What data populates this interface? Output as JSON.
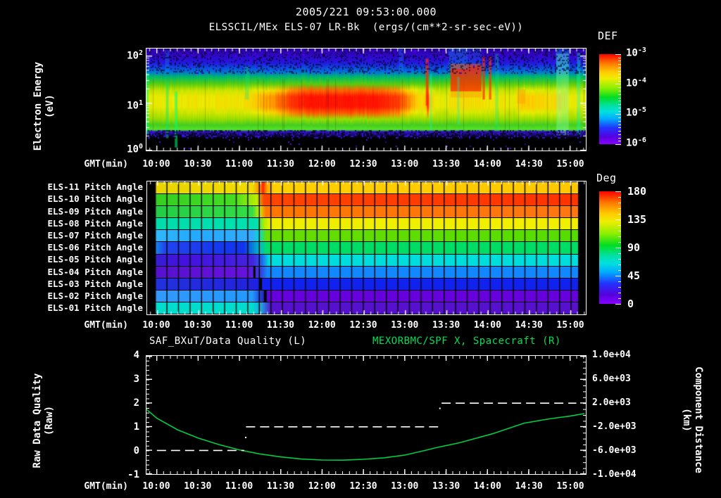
{
  "header": {
    "date_title": "2005/221 09:53:00.000",
    "instrument_title": "ELSSCIL/MEx ELS-07 LR-Bk  (ergs/(cm**2-sr-sec-eV))"
  },
  "colors": {
    "background": "#000000",
    "text": "#ffffff",
    "green_accent": "#00e055",
    "curve_green": "#00cc44"
  },
  "time_axis": {
    "label": "GMT(min)",
    "ticks": [
      "10:00",
      "10:30",
      "11:00",
      "11:30",
      "12:00",
      "12:30",
      "13:00",
      "13:30",
      "14:00",
      "14:30",
      "15:00"
    ]
  },
  "top_panel": {
    "ylabel_line1": "Electron Energy",
    "ylabel_line2": "(eV)",
    "yticks": [
      {
        "b": "10",
        "e": "2"
      },
      {
        "b": "10",
        "e": "1"
      },
      {
        "b": "10",
        "e": "0"
      }
    ],
    "colorbar": {
      "title": "DEF",
      "ticks": [
        {
          "b": "10",
          "e": "-3"
        },
        {
          "b": "10",
          "e": "-4"
        },
        {
          "b": "10",
          "e": "-5"
        },
        {
          "b": "10",
          "e": "-6"
        }
      ]
    }
  },
  "middle_panel": {
    "colorbar": {
      "title": "Deg",
      "ticks": [
        "180",
        "135",
        "90",
        "45",
        "0"
      ]
    },
    "rows": [
      {
        "label": "ELS-11 Pitch Angle",
        "stops": [
          [
            0,
            "#e8d400"
          ],
          [
            24,
            "#f0dc00"
          ],
          [
            25.8,
            "#ff8800"
          ],
          [
            26.4,
            "#ff2200"
          ],
          [
            27.4,
            "#ffaa00"
          ],
          [
            29,
            "#ffd000"
          ],
          [
            100,
            "#ffc800"
          ]
        ]
      },
      {
        "label": "ELS-10 Pitch Angle",
        "stops": [
          [
            0,
            "#33cc22"
          ],
          [
            20,
            "#44dd22"
          ],
          [
            25,
            "#bbee00"
          ],
          [
            26.6,
            "#ff4400"
          ],
          [
            100,
            "#ff3300"
          ]
        ]
      },
      {
        "label": "ELS-09 Pitch Angle",
        "stops": [
          [
            0,
            "#22cc44"
          ],
          [
            24,
            "#33dd44"
          ],
          [
            25.6,
            "#ccee00"
          ],
          [
            27,
            "#ff7700"
          ],
          [
            100,
            "#ff7711"
          ]
        ]
      },
      {
        "label": "ELS-08 Pitch Angle",
        "stops": [
          [
            0,
            "#00ddaa"
          ],
          [
            25,
            "#00e0b0"
          ],
          [
            26.6,
            "#aaee00"
          ],
          [
            28,
            "#eeee00"
          ],
          [
            100,
            "#f0f000"
          ]
        ]
      },
      {
        "label": "ELS-07 Pitch Angle",
        "stops": [
          [
            0,
            "#33bbff"
          ],
          [
            10,
            "#22aaff"
          ],
          [
            24,
            "#33aaff"
          ],
          [
            25.6,
            "#00ddcc"
          ],
          [
            27.2,
            "#66dd00"
          ],
          [
            100,
            "#55dd00"
          ]
        ]
      },
      {
        "label": "ELS-06 Pitch Angle",
        "stops": [
          [
            0,
            "#00c8e8"
          ],
          [
            4,
            "#2244ee"
          ],
          [
            22,
            "#1133ee"
          ],
          [
            25.6,
            "#00bbcc"
          ],
          [
            27.4,
            "#00dd66"
          ],
          [
            100,
            "#00dd66"
          ]
        ]
      },
      {
        "label": "ELS-05 Pitch Angle",
        "stops": [
          [
            0,
            "#3322cc"
          ],
          [
            8,
            "#4411dd"
          ],
          [
            24,
            "#4422dd"
          ],
          [
            26.2,
            "#2266ee"
          ],
          [
            27.8,
            "#00dddd"
          ],
          [
            100,
            "#00dddd"
          ]
        ]
      },
      {
        "label": "ELS-04 Pitch Angle",
        "stops": [
          [
            0,
            "#5511cc"
          ],
          [
            23,
            "#6611dd"
          ],
          [
            26,
            "#3344dd"
          ],
          [
            27.4,
            "#1188ff"
          ],
          [
            100,
            "#1188ff"
          ]
        ]
      },
      {
        "label": "ELS-03 Pitch Angle",
        "stops": [
          [
            0,
            "#2233dd"
          ],
          [
            24,
            "#2222dd"
          ],
          [
            26.6,
            "#1122ee"
          ],
          [
            100,
            "#1122ee"
          ]
        ]
      },
      {
        "label": "ELS-02 Pitch Angle",
        "stops": [
          [
            0,
            "#3399ff"
          ],
          [
            24,
            "#2299ff"
          ],
          [
            26.2,
            "#2233cc"
          ],
          [
            27.8,
            "#6600dd"
          ],
          [
            100,
            "#6600dd"
          ]
        ]
      },
      {
        "label": "ELS-01 Pitch Angle",
        "stops": [
          [
            0,
            "#00ddcc"
          ],
          [
            24,
            "#00ddcc"
          ],
          [
            26.2,
            "#2299dd"
          ],
          [
            28.2,
            "#5511cc"
          ],
          [
            100,
            "#5511cc"
          ]
        ]
      }
    ],
    "marks": [
      {
        "row": 7,
        "pct": 24.2,
        "w": 3
      },
      {
        "row": 8,
        "pct": 25.7,
        "w": 3
      },
      {
        "row": 9,
        "pct": 26.6,
        "w": 4
      }
    ]
  },
  "bottom_panel": {
    "title_left": "SAF_BXuT/Data Quality (L)",
    "title_right": "MEXORBMC/SPF X, Spacecraft (R)",
    "ylabel_left_1": "Raw Data Quality",
    "ylabel_left_2": "(Raw)",
    "yticks_left": [
      "4",
      "3",
      "2",
      "1",
      "0",
      "-1"
    ],
    "ylabel_right_1": "Component Distance",
    "ylabel_right_2": "(km)",
    "yticks_right": [
      "1.0e+04",
      "6.0e+03",
      "2.0e+03",
      "-2.0e+03",
      "-6.0e+03",
      "-1.0e+04"
    ]
  },
  "chart_data": [
    {
      "id": "electron-energy-spectrogram",
      "type": "heatmap",
      "title": "ELSSCIL/MEx ELS-07 LR-Bk (ergs/(cm**2-sr-sec-eV))",
      "datetime": "2005/221 09:53:00.000",
      "xlabel": "GMT(min)",
      "x_ticks": [
        "10:00",
        "10:30",
        "11:00",
        "11:30",
        "12:00",
        "12:30",
        "13:00",
        "13:30",
        "14:00",
        "14:30",
        "15:00"
      ],
      "x_range_gmt": [
        "09:52",
        "15:12"
      ],
      "ylabel": "Electron Energy (eV)",
      "y_scale": "log",
      "y_range_ev": [
        1,
        140
      ],
      "colorbar": {
        "label": "DEF",
        "ticks": [
          "1e-3",
          "1e-4",
          "1e-5",
          "1e-6"
        ],
        "palette": "rainbow"
      },
      "description": "Broad 5-40 eV flux band: yellow 10:00-11:20, intense red 11:30-13:00, red burst 13:16, high-energy red block 13:34-13:56, red streaks 13:57 and 14:02, yellow-green after 14:05; dark-blue speckled region above 50 eV; black below 4 eV with sparse counts; thin bright line near 4.5 eV",
      "hot_band_intensity_keypoints": [
        [
          -8,
          0.5
        ],
        [
          20,
          0.52
        ],
        [
          60,
          0.54
        ],
        [
          68,
          0.58
        ],
        [
          85,
          0.72
        ],
        [
          100,
          0.92
        ],
        [
          110,
          1.0
        ],
        [
          160,
          1.0
        ],
        [
          175,
          0.88
        ],
        [
          185,
          0.68
        ],
        [
          192,
          0.56
        ],
        [
          195.5,
          0.62
        ],
        [
          196.8,
          1.0
        ],
        [
          198,
          0.62
        ],
        [
          202,
          0.52
        ],
        [
          210,
          0.47
        ],
        [
          213,
          0.55
        ],
        [
          236,
          0.55
        ],
        [
          247,
          0.52
        ],
        [
          260,
          0.5
        ],
        [
          266,
          0.62
        ],
        [
          285,
          0.55
        ],
        [
          292,
          0.6
        ],
        [
          300,
          0.52
        ],
        [
          312,
          0.48
        ]
      ],
      "streaks": [
        [
          -8,
          -6,
          0.24,
          0.84,
          "rgba(0,255,130,0.5)"
        ],
        [
          6.5,
          8.5,
          0.33,
          0.88,
          "rgba(0,235,110,0.45)"
        ],
        [
          13,
          15,
          0.42,
          0.97,
          "rgba(0,255,120,0.55)"
        ],
        [
          64,
          67,
          0.18,
          0.5,
          "rgba(0,225,130,0.3)"
        ],
        [
          195.5,
          197.5,
          0.1,
          0.56,
          "rgba(255,40,0,0.75)"
        ],
        [
          198.5,
          200,
          0.25,
          0.8,
          "rgba(0,255,210,0.3)"
        ],
        [
          213.5,
          236,
          0.15,
          0.42,
          "rgba(255,45,0,0.8)"
        ],
        [
          213.5,
          236,
          0.42,
          0.48,
          "rgba(255,150,0,0.45)"
        ],
        [
          218.5,
          220,
          0.28,
          0.75,
          "rgba(0,240,210,0.35)"
        ],
        [
          236.8,
          238.5,
          0.08,
          0.5,
          "rgba(255,50,0,0.75)"
        ],
        [
          241.5,
          243.2,
          0.08,
          0.5,
          "rgba(255,50,0,0.7)"
        ],
        [
          246,
          248.5,
          0.05,
          0.8,
          "rgba(0,235,140,0.3)"
        ],
        [
          262,
          268,
          0.4,
          0.54,
          "rgba(255,150,0,0.4)"
        ],
        [
          290.5,
          299.5,
          0.05,
          0.85,
          "rgba(130,255,170,0.4)"
        ],
        [
          305.5,
          308,
          0.04,
          0.85,
          "rgba(0,255,200,0.35)"
        ],
        [
          212,
          226,
          0.0,
          0.2,
          "rgba(0,190,255,0.3)"
        ],
        [
          226,
          236,
          0.0,
          0.18,
          "rgba(0,160,255,0.22)"
        ],
        [
          290,
          300,
          0.0,
          0.2,
          "rgba(0,220,255,0.28)"
        ],
        [
          176,
          179,
          0.0,
          0.22,
          "rgba(0,170,255,0.25)"
        ],
        [
          6,
          9,
          0.02,
          0.25,
          "rgba(0,170,255,0.25)"
        ]
      ]
    },
    {
      "id": "pitch-angle-panel",
      "type": "heatmap",
      "rows": [
        "ELS-11 Pitch Angle",
        "ELS-10 Pitch Angle",
        "ELS-09 Pitch Angle",
        "ELS-08 Pitch Angle",
        "ELS-07 Pitch Angle",
        "ELS-06 Pitch Angle",
        "ELS-05 Pitch Angle",
        "ELS-04 Pitch Angle",
        "ELS-03 Pitch Angle",
        "ELS-02 Pitch Angle",
        "ELS-01 Pitch Angle"
      ],
      "colorbar": {
        "label": "Deg",
        "ticks": [
          180,
          135,
          90,
          45,
          0
        ]
      },
      "transition_gmt": "11:18",
      "values_deg_before": [
        130,
        112,
        110,
        95,
        72,
        48,
        30,
        18,
        42,
        70,
        88
      ],
      "values_deg_after": [
        133,
        168,
        155,
        135,
        120,
        105,
        90,
        70,
        45,
        20,
        15
      ]
    },
    {
      "id": "quality-and-distance",
      "type": "line",
      "title_left": "SAF_BXuT/Data Quality (L)",
      "title_right": "MEXORBMC/SPF X, Spacecraft (R)",
      "xlabel": "GMT(min)",
      "x_ticks": [
        "10:00",
        "10:30",
        "11:00",
        "11:30",
        "12:00",
        "12:30",
        "13:00",
        "13:30",
        "14:00",
        "14:30",
        "15:00"
      ],
      "left_axis": {
        "label": "Raw Data Quality (Raw)",
        "range": [
          -1,
          4
        ]
      },
      "right_axis": {
        "label": "Component Distance (km)",
        "range": [
          -10000,
          10000
        ]
      },
      "quality_segments": [
        {
          "t0": 0,
          "t1": 63.5,
          "value": 0
        },
        {
          "t0": 64.8,
          "t1": 204.5,
          "value": 1
        },
        {
          "t0": 207,
          "t1": 305,
          "value": 2
        }
      ],
      "quality_dots": [
        [
          64.6,
          0.55
        ],
        [
          205.8,
          1.78
        ]
      ],
      "distance_points_km": [
        [
          -7.6,
          950
        ],
        [
          0,
          -550
        ],
        [
          15,
          -2500
        ],
        [
          30,
          -3900
        ],
        [
          45,
          -5000
        ],
        [
          60,
          -5900
        ],
        [
          75,
          -6600
        ],
        [
          90,
          -7100
        ],
        [
          105,
          -7450
        ],
        [
          120,
          -7620
        ],
        [
          135,
          -7640
        ],
        [
          150,
          -7500
        ],
        [
          165,
          -7250
        ],
        [
          180,
          -6800
        ],
        [
          195,
          -6000
        ],
        [
          203,
          -5530
        ],
        [
          220,
          -4700
        ],
        [
          244,
          -3180
        ],
        [
          267,
          -1380
        ],
        [
          287,
          -590
        ],
        [
          300,
          -200
        ],
        [
          311,
          250
        ]
      ]
    }
  ]
}
